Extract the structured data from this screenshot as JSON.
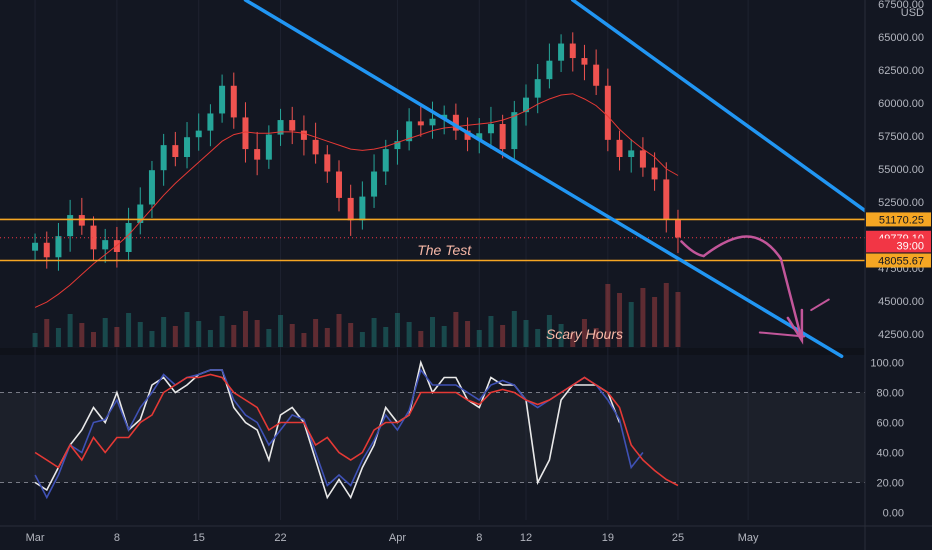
{
  "chart_data": [
    {
      "type": "candlestick",
      "currency": "USD",
      "y_ticks": [
        "67500.00",
        "65000.00",
        "62500.00",
        "60000.00",
        "57500.00",
        "55000.00",
        "52500.00",
        "50000.00",
        "47500.00",
        "45000.00",
        "42500.00"
      ],
      "ylim": [
        41500,
        67800
      ],
      "x_ticks": [
        "Mar",
        "8",
        "15",
        "22",
        "Apr",
        "8",
        "12",
        "19",
        "25",
        "May"
      ],
      "x_tick_days": [
        0,
        7,
        14,
        21,
        31,
        38,
        42,
        49,
        55,
        61
      ],
      "xlim_days": [
        -3,
        71
      ],
      "price_levels": [
        {
          "label": "51170.25",
          "value": 51170.25,
          "color": "#f5a623",
          "text_color": "#131722"
        },
        {
          "label": "49779.10",
          "value": 49779.1,
          "color": "#f23645",
          "text_color": "#ffffff"
        },
        {
          "label": "39:00",
          "value": 49200,
          "color": "#f23645",
          "text_color": "#ffffff"
        },
        {
          "label": "48055.67",
          "value": 48055.67,
          "color": "#f5a623",
          "text_color": "#131722"
        }
      ],
      "horizontal_lines": [
        {
          "value": 51170.25,
          "color": "#f5a623"
        },
        {
          "value": 48055.67,
          "color": "#f5a623"
        }
      ],
      "channel_lines": [
        {
          "color": "#2196f3",
          "points": [
            [
              18,
              67800
            ],
            [
              69,
              40800
            ]
          ]
        },
        {
          "color": "#2196f3",
          "points": [
            [
              46,
              67800
            ],
            [
              72,
              51200
            ]
          ]
        }
      ],
      "annotations": [
        {
          "text": "The Test",
          "day": 35,
          "price": 48850
        },
        {
          "text": "Scary Hours",
          "day": 47,
          "price": 42500
        }
      ],
      "close_prices": [
        49400,
        48300,
        49900,
        51500,
        50700,
        48900,
        49600,
        48700,
        50900,
        52300,
        54900,
        56800,
        55900,
        57400,
        57900,
        59200,
        61300,
        58900,
        56500,
        55700,
        57600,
        58700,
        57900,
        57200,
        56100,
        54800,
        52800,
        51100,
        52900,
        54800,
        56500,
        57100,
        58600,
        58300,
        58800,
        59100,
        57900,
        57200,
        57700,
        58400,
        56500,
        59300,
        60400,
        61800,
        63200,
        64500,
        63400,
        62900,
        61300,
        57200,
        55900,
        56400,
        55100,
        54200,
        51200,
        49800
      ],
      "ma_values": [
        44500,
        44900,
        45500,
        46200,
        47000,
        47800,
        48500,
        49200,
        50000,
        51000,
        52000,
        53000,
        53900,
        54700,
        55500,
        56300,
        57100,
        57600,
        57800,
        57700,
        57700,
        57800,
        57800,
        57700,
        57400,
        57100,
        56800,
        56500,
        56400,
        56500,
        56700,
        57000,
        57300,
        57600,
        57900,
        58100,
        58200,
        58300,
        58400,
        58500,
        58700,
        59000,
        59400,
        59900,
        60300,
        60600,
        60700,
        60300,
        59800,
        59000,
        58000,
        57200,
        56500,
        55900,
        55000,
        54500
      ]
    },
    {
      "type": "line",
      "y_ticks": [
        "100.00",
        "80.00",
        "60.00",
        "40.00",
        "20.00",
        "0.00"
      ],
      "ylim": [
        -5,
        105
      ],
      "bands": [
        80,
        20
      ],
      "series": [
        {
          "color": "#e9e9e9",
          "values": [
            20,
            15,
            30,
            45,
            55,
            70,
            60,
            80,
            55,
            62,
            85,
            90,
            80,
            85,
            92,
            95,
            95,
            70,
            60,
            55,
            35,
            65,
            70,
            60,
            35,
            10,
            22,
            10,
            30,
            45,
            70,
            60,
            65,
            100,
            80,
            90,
            90,
            75,
            70,
            90,
            85,
            85,
            75,
            20,
            35,
            75,
            85,
            85,
            85,
            80,
            60,
            null,
            null,
            null,
            null,
            null
          ]
        },
        {
          "color": "#3f51b5",
          "values": [
            25,
            10,
            25,
            45,
            40,
            60,
            62,
            75,
            55,
            70,
            80,
            92,
            85,
            90,
            92,
            95,
            95,
            75,
            65,
            60,
            45,
            55,
            65,
            62,
            40,
            18,
            25,
            18,
            35,
            48,
            65,
            55,
            68,
            95,
            85,
            85,
            85,
            80,
            75,
            85,
            88,
            85,
            75,
            70,
            75,
            80,
            85,
            90,
            85,
            75,
            62,
            30,
            40,
            null,
            null,
            null
          ]
        },
        {
          "color": "#e53935",
          "values": [
            40,
            35,
            30,
            45,
            35,
            50,
            40,
            50,
            50,
            60,
            65,
            80,
            85,
            90,
            90,
            92,
            90,
            80,
            75,
            70,
            55,
            60,
            60,
            60,
            45,
            50,
            40,
            35,
            40,
            55,
            60,
            60,
            65,
            80,
            80,
            80,
            80,
            75,
            72,
            80,
            82,
            80,
            75,
            72,
            75,
            80,
            85,
            90,
            85,
            80,
            70,
            45,
            35,
            28,
            22,
            18
          ]
        }
      ]
    }
  ]
}
